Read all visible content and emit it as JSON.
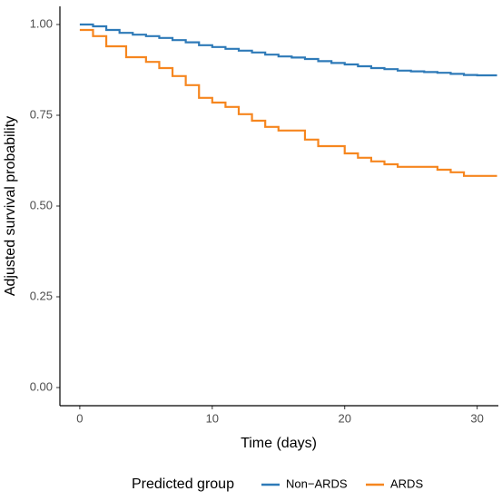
{
  "chart_data": {
    "type": "step",
    "x_label": "Time (days)",
    "y_label": "Adjusted survival probability",
    "legend_title": "Predicted group",
    "legend_position": "bottom",
    "xlim": [
      -1.5,
      31.6
    ],
    "ylim": [
      -0.05,
      1.05
    ],
    "xticks": [
      0,
      10,
      20,
      30
    ],
    "yticks": [
      {
        "value": 0,
        "label": "0.00"
      },
      0.25,
      {
        "value": 0.5,
        "label": "0.50"
      },
      0.75,
      {
        "value": 1,
        "label": "1.00"
      }
    ],
    "series": [
      {
        "name": "Non−ARDS",
        "color": "#2e7ab8",
        "x": [
          0,
          1,
          2,
          3,
          4,
          5,
          6,
          7,
          8,
          9,
          10,
          11,
          12,
          13,
          14,
          15,
          16,
          17,
          18,
          19,
          20,
          21,
          22,
          23,
          24,
          25,
          26,
          27,
          28,
          29,
          30,
          31.5
        ],
        "values": [
          1.0,
          0.995,
          0.985,
          0.977,
          0.972,
          0.968,
          0.963,
          0.957,
          0.951,
          0.943,
          0.938,
          0.933,
          0.928,
          0.923,
          0.917,
          0.912,
          0.909,
          0.905,
          0.899,
          0.894,
          0.89,
          0.885,
          0.88,
          0.877,
          0.873,
          0.871,
          0.869,
          0.867,
          0.864,
          0.861,
          0.86,
          0.86
        ]
      },
      {
        "name": "ARDS",
        "color": "#f6861f",
        "x": [
          0,
          1,
          2,
          3.5,
          5,
          6,
          7,
          8,
          9,
          10,
          11,
          12,
          13,
          14,
          15,
          17,
          18,
          20,
          21,
          22,
          23,
          24,
          27,
          28,
          29,
          31.5
        ],
        "values": [
          0.985,
          0.968,
          0.94,
          0.91,
          0.897,
          0.88,
          0.858,
          0.833,
          0.798,
          0.785,
          0.773,
          0.753,
          0.735,
          0.718,
          0.708,
          0.683,
          0.665,
          0.645,
          0.633,
          0.623,
          0.615,
          0.608,
          0.6,
          0.593,
          0.583,
          0.583
        ]
      }
    ]
  }
}
